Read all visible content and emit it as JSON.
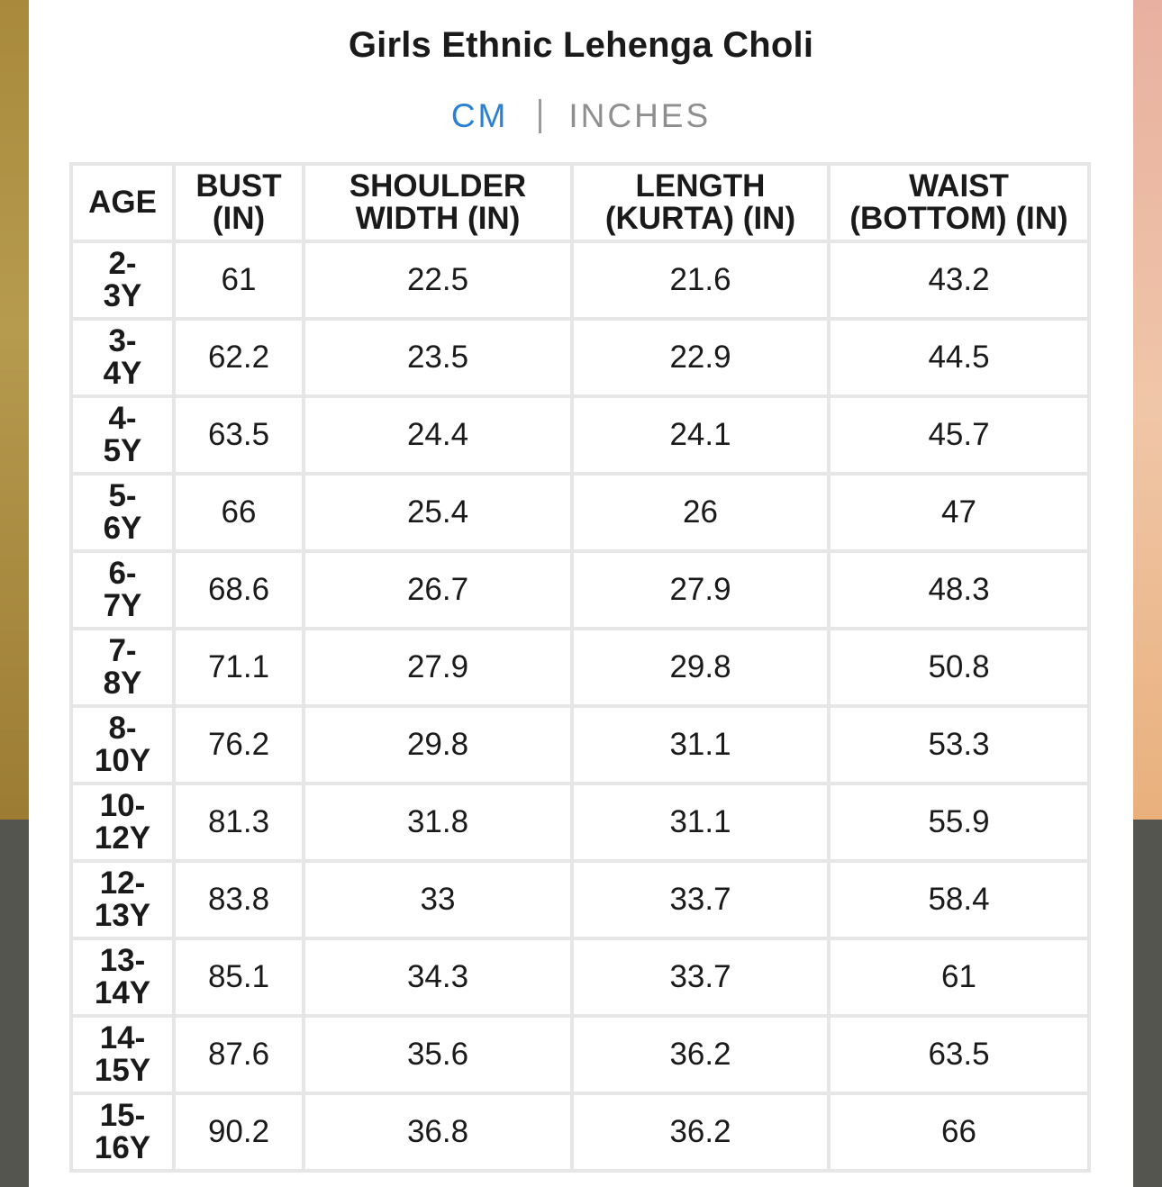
{
  "title": "Girls Ethnic Lehenga Choli",
  "units": {
    "cm_label": "CM",
    "inches_label": "INCHES",
    "active": "CM"
  },
  "table": {
    "headers": {
      "age": "AGE",
      "bust_line1": "BUST",
      "bust_line2": "(IN)",
      "shoulder_line1": "SHOULDER",
      "shoulder_line2": "WIDTH (IN)",
      "length_line1": "LENGTH",
      "length_line2": "(KURTA) (IN)",
      "waist_line1": "WAIST",
      "waist_line2": "(BOTTOM) (IN)"
    },
    "rows": [
      {
        "age1": "2-",
        "age2": "3Y",
        "bust": "61",
        "shoulder": "22.5",
        "length": "21.6",
        "waist": "43.2"
      },
      {
        "age1": "3-",
        "age2": "4Y",
        "bust": "62.2",
        "shoulder": "23.5",
        "length": "22.9",
        "waist": "44.5"
      },
      {
        "age1": "4-",
        "age2": "5Y",
        "bust": "63.5",
        "shoulder": "24.4",
        "length": "24.1",
        "waist": "45.7"
      },
      {
        "age1": "5-",
        "age2": "6Y",
        "bust": "66",
        "shoulder": "25.4",
        "length": "26",
        "waist": "47"
      },
      {
        "age1": "6-",
        "age2": "7Y",
        "bust": "68.6",
        "shoulder": "26.7",
        "length": "27.9",
        "waist": "48.3"
      },
      {
        "age1": "7-",
        "age2": "8Y",
        "bust": "71.1",
        "shoulder": "27.9",
        "length": "29.8",
        "waist": "50.8"
      },
      {
        "age1": "8-",
        "age2": "10Y",
        "bust": "76.2",
        "shoulder": "29.8",
        "length": "31.1",
        "waist": "53.3"
      },
      {
        "age1": "10-",
        "age2": "12Y",
        "bust": "81.3",
        "shoulder": "31.8",
        "length": "31.1",
        "waist": "55.9"
      },
      {
        "age1": "12-",
        "age2": "13Y",
        "bust": "83.8",
        "shoulder": "33",
        "length": "33.7",
        "waist": "58.4"
      },
      {
        "age1": "13-",
        "age2": "14Y",
        "bust": "85.1",
        "shoulder": "34.3",
        "length": "33.7",
        "waist": "61"
      },
      {
        "age1": "14-",
        "age2": "15Y",
        "bust": "87.6",
        "shoulder": "35.6",
        "length": "36.2",
        "waist": "63.5"
      },
      {
        "age1": "15-",
        "age2": "16Y",
        "bust": "90.2",
        "shoulder": "36.8",
        "length": "36.2",
        "waist": "66"
      }
    ]
  },
  "colors": {
    "accent": "#2c80d2",
    "inactive": "#8f8f8f",
    "grid": "#e6e6e6"
  }
}
